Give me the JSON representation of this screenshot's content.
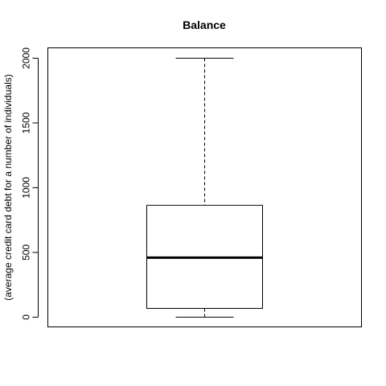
{
  "chart_data": {
    "type": "boxplot",
    "title": "Balance",
    "xlabel": "",
    "ylabel": "(average credit card debt for a number of individuals)",
    "ylim": [
      -75,
      2080
    ],
    "yticks": [
      0,
      500,
      1000,
      1500,
      2000
    ],
    "grid": false,
    "legend": "none",
    "series": [
      {
        "whisker_low": 0,
        "q1": 68,
        "median": 460,
        "q3": 864,
        "whisker_high": 2000
      }
    ]
  }
}
